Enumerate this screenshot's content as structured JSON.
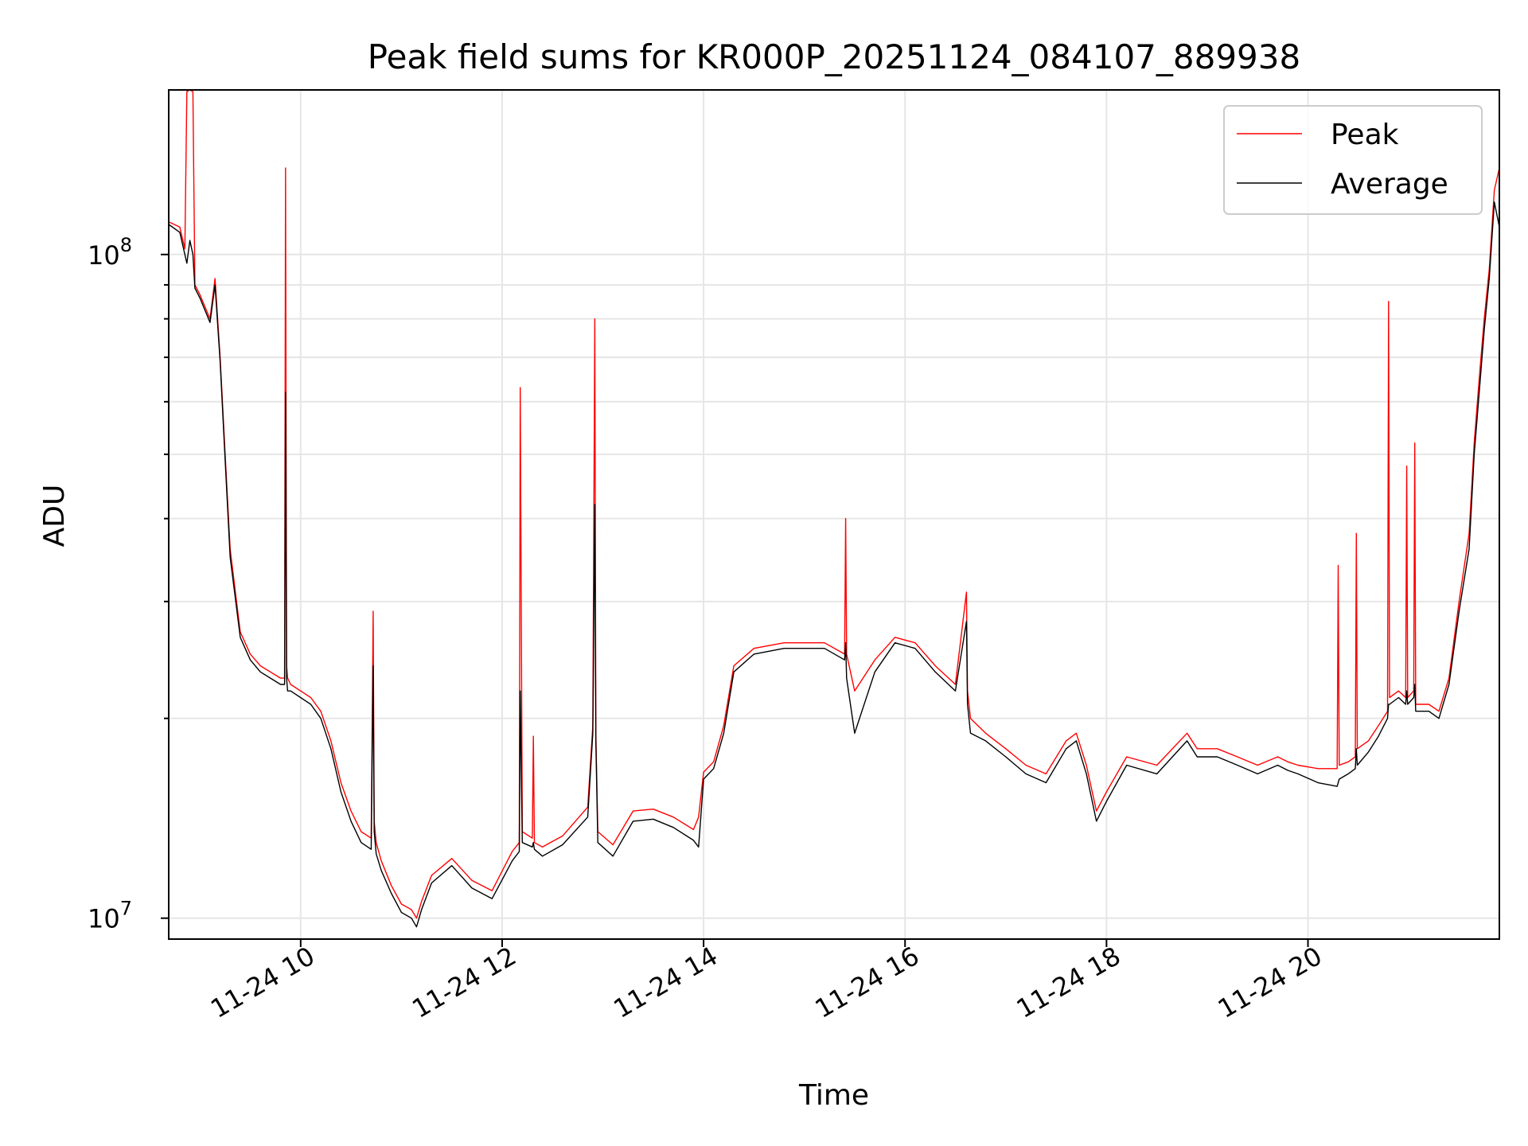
{
  "chart_data": {
    "type": "line",
    "title": "Peak field sums for KR000P_20251124_084107_889938",
    "xlabel": "Time",
    "ylabel": "ADU",
    "yscale": "log",
    "xlim": [
      8.69,
      21.9
    ],
    "ylim": [
      9300000,
      177000000
    ],
    "grid": true,
    "legend_position": "top-right",
    "x_ticks": [
      {
        "value": 10,
        "label": "11-24 10"
      },
      {
        "value": 12,
        "label": "11-24 12"
      },
      {
        "value": 14,
        "label": "11-24 14"
      },
      {
        "value": 16,
        "label": "11-24 16"
      },
      {
        "value": 18,
        "label": "11-24 18"
      },
      {
        "value": 20,
        "label": "11-24 20"
      }
    ],
    "y_major_ticks": [
      {
        "value": 10000000,
        "base": "10",
        "exp": "7"
      },
      {
        "value": 100000000,
        "base": "10",
        "exp": "8"
      }
    ],
    "y_minor_ticks": [
      20000000,
      30000000,
      40000000,
      50000000,
      60000000,
      70000000,
      80000000,
      90000000
    ],
    "series": [
      {
        "name": "Peak",
        "color": "#ff0000",
        "x": [
          8.69,
          8.8,
          8.85,
          8.87,
          8.9,
          8.93,
          8.95,
          9.0,
          9.1,
          9.15,
          9.2,
          9.25,
          9.3,
          9.4,
          9.5,
          9.6,
          9.7,
          9.8,
          9.84,
          9.85,
          9.86,
          9.87,
          9.9,
          10.1,
          10.2,
          10.3,
          10.4,
          10.5,
          10.6,
          10.7,
          10.72,
          10.73,
          10.75,
          10.8,
          10.9,
          11.0,
          11.1,
          11.15,
          11.2,
          11.3,
          11.5,
          11.7,
          11.9,
          12.1,
          12.17,
          12.18,
          12.2,
          12.3,
          12.31,
          12.32,
          12.4,
          12.6,
          12.85,
          12.9,
          12.92,
          12.93,
          12.95,
          13.1,
          13.3,
          13.5,
          13.7,
          13.9,
          13.95,
          14.0,
          14.1,
          14.2,
          14.3,
          14.5,
          14.8,
          15.0,
          15.2,
          15.4,
          15.41,
          15.42,
          15.5,
          15.7,
          15.9,
          16.1,
          16.3,
          16.5,
          16.61,
          16.62,
          16.65,
          16.8,
          17.0,
          17.2,
          17.4,
          17.6,
          17.7,
          17.8,
          17.9,
          18.0,
          18.2,
          18.5,
          18.8,
          18.9,
          19.1,
          19.3,
          19.5,
          19.7,
          19.8,
          19.9,
          20.1,
          20.29,
          20.3,
          20.31,
          20.4,
          20.47,
          20.48,
          20.49,
          20.6,
          20.7,
          20.79,
          20.8,
          20.81,
          20.9,
          20.97,
          20.98,
          20.99,
          21.05,
          21.06,
          21.07,
          21.2,
          21.3,
          21.4,
          21.5,
          21.6,
          21.65,
          21.7,
          21.75,
          21.8,
          21.85,
          21.9
        ],
        "y": [
          112000000,
          110000000,
          102000000,
          176000000,
          177000000,
          176000000,
          90000000,
          87000000,
          80000000,
          92000000,
          70000000,
          50000000,
          36000000,
          27000000,
          25000000,
          24000000,
          23500000,
          23000000,
          23000000,
          135000000,
          24000000,
          23000000,
          22500000,
          21500000,
          20500000,
          18500000,
          16000000,
          14500000,
          13500000,
          13200000,
          29000000,
          14000000,
          13000000,
          12200000,
          11200000,
          10500000,
          10300000,
          10000000,
          10600000,
          11600000,
          12300000,
          11400000,
          11000000,
          12600000,
          13000000,
          63000000,
          13500000,
          13200000,
          18800000,
          13000000,
          12800000,
          13300000,
          14700000,
          19500000,
          80000000,
          19000000,
          13500000,
          12900000,
          14500000,
          14600000,
          14200000,
          13600000,
          14200000,
          16600000,
          17200000,
          19500000,
          24000000,
          25500000,
          26000000,
          26000000,
          26000000,
          25000000,
          40000000,
          25000000,
          22000000,
          24500000,
          26500000,
          26000000,
          24000000,
          22500000,
          31000000,
          22000000,
          20000000,
          19000000,
          18000000,
          17000000,
          16500000,
          18500000,
          19000000,
          17000000,
          14500000,
          15500000,
          17500000,
          17000000,
          19000000,
          18000000,
          18000000,
          17500000,
          17000000,
          17500000,
          17200000,
          17000000,
          16800000,
          16800000,
          34000000,
          17000000,
          17200000,
          17500000,
          38000000,
          18000000,
          18500000,
          19500000,
          20500000,
          85000000,
          21500000,
          22000000,
          21500000,
          48000000,
          21500000,
          22000000,
          52000000,
          21000000,
          21000000,
          20500000,
          23000000,
          30000000,
          38000000,
          52000000,
          65000000,
          80000000,
          95000000,
          125000000,
          135000000
        ],
        "stroke_width": 1.4
      },
      {
        "name": "Average",
        "color": "#000000",
        "x": [
          8.69,
          8.8,
          8.85,
          8.87,
          8.9,
          8.93,
          8.95,
          9.0,
          9.1,
          9.15,
          9.2,
          9.25,
          9.3,
          9.4,
          9.5,
          9.6,
          9.7,
          9.8,
          9.84,
          9.85,
          9.86,
          9.87,
          9.9,
          10.1,
          10.2,
          10.3,
          10.4,
          10.5,
          10.6,
          10.7,
          10.72,
          10.73,
          10.75,
          10.8,
          10.9,
          11.0,
          11.1,
          11.15,
          11.2,
          11.3,
          11.5,
          11.7,
          11.9,
          12.1,
          12.17,
          12.18,
          12.2,
          12.3,
          12.31,
          12.32,
          12.4,
          12.6,
          12.85,
          12.9,
          12.92,
          12.93,
          12.95,
          13.1,
          13.3,
          13.5,
          13.7,
          13.9,
          13.95,
          14.0,
          14.1,
          14.2,
          14.3,
          14.5,
          14.8,
          15.0,
          15.2,
          15.4,
          15.41,
          15.42,
          15.5,
          15.7,
          15.9,
          16.1,
          16.3,
          16.5,
          16.61,
          16.62,
          16.65,
          16.8,
          17.0,
          17.2,
          17.4,
          17.6,
          17.7,
          17.8,
          17.9,
          18.0,
          18.2,
          18.5,
          18.8,
          18.9,
          19.1,
          19.3,
          19.5,
          19.7,
          19.8,
          19.9,
          20.1,
          20.29,
          20.3,
          20.31,
          20.4,
          20.47,
          20.48,
          20.49,
          20.6,
          20.7,
          20.79,
          20.8,
          20.81,
          20.9,
          20.97,
          20.98,
          20.99,
          21.05,
          21.06,
          21.07,
          21.2,
          21.3,
          21.4,
          21.5,
          21.6,
          21.65,
          21.7,
          21.75,
          21.8,
          21.85,
          21.9
        ],
        "y": [
          111000000,
          108000000,
          100000000,
          97000000,
          105000000,
          100000000,
          89000000,
          86000000,
          79000000,
          90000000,
          69000000,
          49000000,
          35000000,
          26500000,
          24500000,
          23500000,
          23000000,
          22500000,
          22500000,
          62000000,
          23000000,
          22000000,
          22000000,
          21000000,
          20000000,
          18000000,
          15500000,
          14000000,
          13000000,
          12700000,
          24000000,
          13500000,
          12500000,
          11800000,
          10900000,
          10200000,
          10000000,
          9700000,
          10300000,
          11300000,
          12000000,
          11100000,
          10700000,
          12200000,
          12600000,
          22000000,
          13000000,
          12800000,
          13000000,
          12700000,
          12400000,
          12900000,
          14200000,
          19000000,
          42000000,
          18500000,
          13000000,
          12400000,
          14000000,
          14100000,
          13700000,
          13100000,
          12800000,
          16200000,
          16800000,
          19000000,
          23500000,
          25000000,
          25500000,
          25500000,
          25500000,
          24500000,
          26000000,
          23000000,
          19000000,
          23500000,
          26000000,
          25500000,
          23500000,
          22000000,
          28000000,
          21000000,
          19000000,
          18500000,
          17500000,
          16500000,
          16000000,
          18000000,
          18500000,
          16500000,
          14000000,
          15000000,
          17000000,
          16500000,
          18500000,
          17500000,
          17500000,
          17000000,
          16500000,
          17000000,
          16700000,
          16500000,
          16000000,
          15800000,
          16000000,
          16200000,
          16500000,
          16800000,
          18000000,
          17000000,
          17800000,
          18800000,
          20000000,
          21000000,
          21000000,
          21500000,
          21000000,
          22000000,
          21000000,
          21500000,
          22500000,
          20500000,
          20500000,
          20000000,
          22500000,
          29000000,
          36000000,
          50000000,
          62000000,
          77000000,
          92000000,
          120000000,
          110000000
        ],
        "stroke_width": 1.4
      }
    ]
  }
}
